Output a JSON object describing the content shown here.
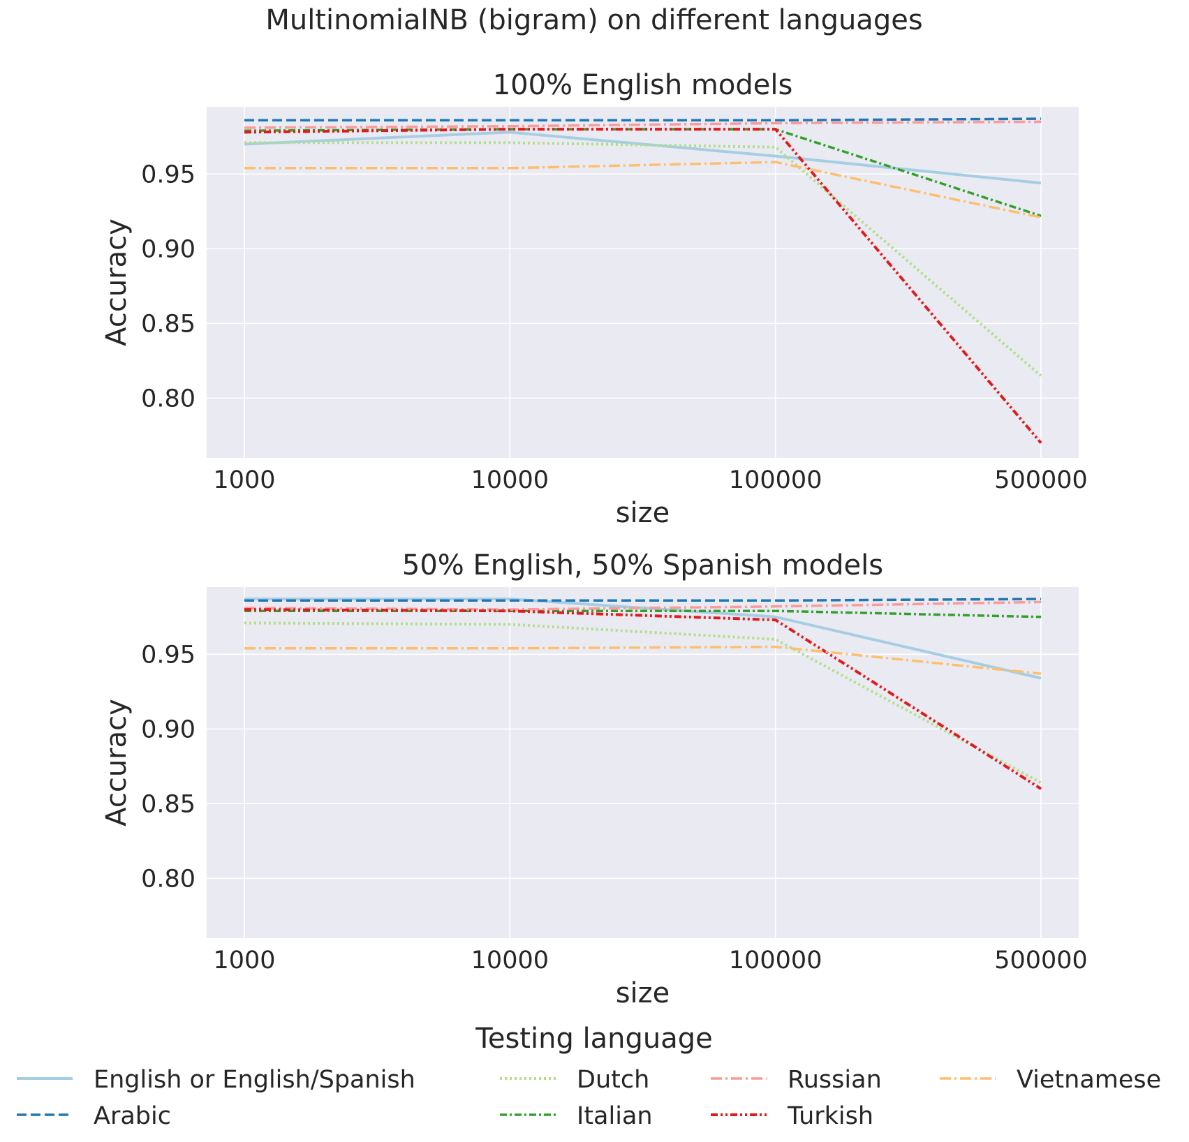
{
  "figure": {
    "suptitle": "MultinomialNB (bigram) on different languages"
  },
  "chart_data": [
    {
      "type": "line",
      "title": "100% English models",
      "xlabel": "size",
      "ylabel": "Accuracy",
      "categories": [
        "1000",
        "10000",
        "100000",
        "500000"
      ],
      "ylim": [
        0.76,
        0.995
      ],
      "yticks": [
        "0.80",
        "0.85",
        "0.90",
        "0.95"
      ],
      "grid": true,
      "series": [
        {
          "name": "English or English/Spanish",
          "values": [
            0.97,
            0.978,
            0.962,
            0.944
          ]
        },
        {
          "name": "Arabic",
          "values": [
            0.986,
            0.986,
            0.986,
            0.987
          ]
        },
        {
          "name": "Dutch",
          "values": [
            0.971,
            0.971,
            0.968,
            0.815
          ]
        },
        {
          "name": "Italian",
          "values": [
            0.979,
            0.98,
            0.98,
            0.922
          ]
        },
        {
          "name": "Russian",
          "values": [
            0.981,
            0.982,
            0.984,
            0.985
          ]
        },
        {
          "name": "Turkish",
          "values": [
            0.978,
            0.98,
            0.98,
            0.77
          ]
        },
        {
          "name": "Vietnamese",
          "values": [
            0.954,
            0.954,
            0.958,
            0.921
          ]
        }
      ]
    },
    {
      "type": "line",
      "title": "50% English, 50% Spanish models",
      "xlabel": "size",
      "ylabel": "Accuracy",
      "categories": [
        "1000",
        "10000",
        "100000",
        "500000"
      ],
      "ylim": [
        0.76,
        0.995
      ],
      "yticks": [
        "0.80",
        "0.85",
        "0.90",
        "0.95"
      ],
      "grid": true,
      "series": [
        {
          "name": "English or English/Spanish",
          "values": [
            0.987,
            0.987,
            0.975,
            0.934
          ]
        },
        {
          "name": "Arabic",
          "values": [
            0.986,
            0.986,
            0.986,
            0.987
          ]
        },
        {
          "name": "Dutch",
          "values": [
            0.971,
            0.97,
            0.96,
            0.864
          ]
        },
        {
          "name": "Italian",
          "values": [
            0.979,
            0.979,
            0.979,
            0.975
          ]
        },
        {
          "name": "Russian",
          "values": [
            0.981,
            0.98,
            0.982,
            0.985
          ]
        },
        {
          "name": "Turkish",
          "values": [
            0.98,
            0.979,
            0.973,
            0.86
          ]
        },
        {
          "name": "Vietnamese",
          "values": [
            0.954,
            0.954,
            0.955,
            0.937
          ]
        }
      ]
    }
  ],
  "legend": {
    "title": "Testing language",
    "placement": "bottom-center",
    "entries": [
      {
        "name": "English or English/Spanish",
        "color": "#a6cee3",
        "style": "solid"
      },
      {
        "name": "Arabic",
        "color": "#1f78b4",
        "style": "dashed"
      },
      {
        "name": "Dutch",
        "color": "#b2df8a",
        "style": "dotted"
      },
      {
        "name": "Italian",
        "color": "#33a02c",
        "style": "dashdot"
      },
      {
        "name": "Russian",
        "color": "#fb9a99",
        "style": "longdashdot"
      },
      {
        "name": "Turkish",
        "color": "#e31a1c",
        "style": "dashdotdot"
      },
      {
        "name": "Vietnamese",
        "color": "#fdbf6f",
        "style": "longdashdot"
      }
    ]
  }
}
